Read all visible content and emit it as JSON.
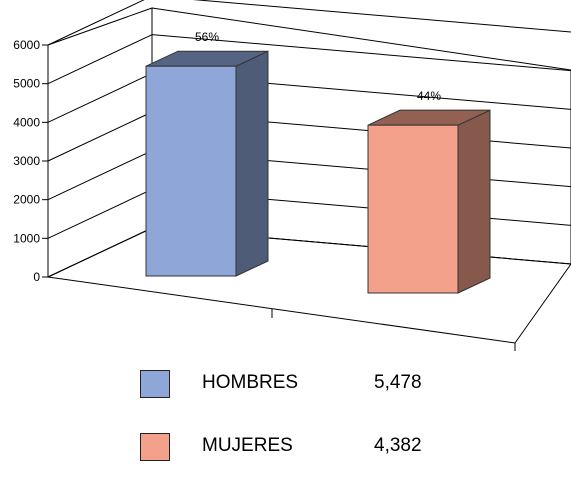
{
  "chart_data": {
    "type": "bar",
    "categories": [
      "HOMBRES",
      "MUJERES"
    ],
    "values": [
      5478,
      4382
    ],
    "value_labels": [
      "5,478",
      "4,382"
    ],
    "percent_labels": [
      "56%",
      "44%"
    ],
    "colors": [
      "#8ea7d8",
      "#f4a18b"
    ],
    "ylim": [
      0,
      6000
    ],
    "yticks": [
      "0",
      "1000",
      "2000",
      "3000",
      "4000",
      "5000",
      "6000"
    ],
    "grid": true,
    "legend_position": "bottom",
    "three_d": true
  }
}
